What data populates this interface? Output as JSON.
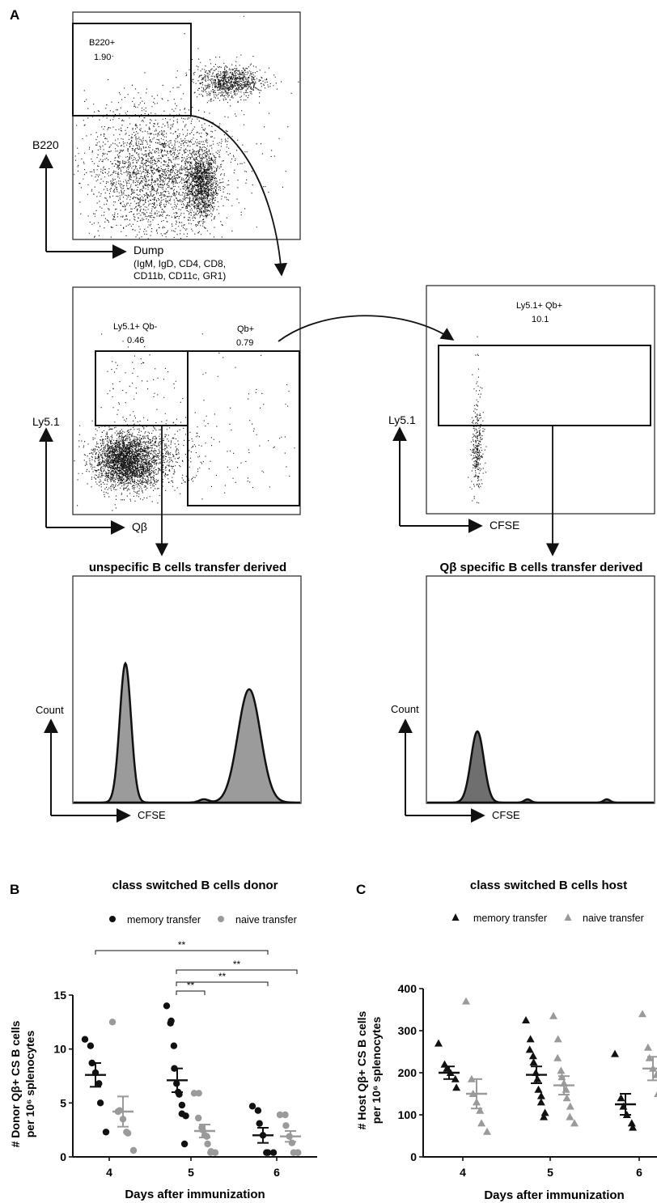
{
  "panel_labels": {
    "a": "A",
    "b": "B",
    "c": "C"
  },
  "colors": {
    "black": "#111111",
    "gray": "#9a9a9a",
    "dark_fill": "#6f6f6f",
    "fill": "#9b9b9b"
  },
  "facs": {
    "plot1": {
      "gate_label": "B220+",
      "gate_value": "1.90",
      "y_axis": "B220",
      "x_axis": "Dump",
      "x_axis_note_1": "(IgM, IgD, CD4, CD8,",
      "x_axis_note_2": "CD11b, CD11c, GR1)"
    },
    "plot2": {
      "gate1_label": "Ly5.1+ Qb-",
      "gate1_value": "0.46",
      "gate2_label": "Qb+",
      "gate2_value": "0.79",
      "y_axis": "Ly5.1",
      "x_axis": "Qβ"
    },
    "plot3": {
      "gate_label": "Ly5.1+ Qb+",
      "gate_value": "10.1",
      "y_axis": "Ly5.1",
      "x_axis": "CFSE"
    },
    "hist1": {
      "title": "unspecific B cells transfer derived",
      "y_axis": "Count",
      "x_axis": "CFSE"
    },
    "hist2": {
      "title": "Qβ specific B cells transfer derived",
      "y_axis": "Count",
      "x_axis": "CFSE"
    }
  },
  "chart_data": [
    {
      "type": "scatter",
      "title": "class switched B cells donor",
      "legend": [
        "memory transfer",
        "naive transfer"
      ],
      "marker": "circle",
      "xlabel": "Days after immunization",
      "ylabel_line1": "# Donor Qβ+ CS B cells",
      "ylabel_line2": "per 10⁶ splenocytes",
      "categories": [
        "4",
        "5",
        "6"
      ],
      "ylim": [
        0,
        15
      ],
      "yticks": [
        "0",
        "5",
        "10",
        "15"
      ],
      "significance": [
        {
          "from": "4 memory",
          "to": "6 memory",
          "label": "**"
        },
        {
          "from": "5 memory",
          "to": "5 naive",
          "label": "**"
        },
        {
          "from": "5 memory",
          "to": "6 memory",
          "label": "**"
        },
        {
          "from": "5 memory",
          "to": "6 naive",
          "label": "**"
        }
      ],
      "series": [
        {
          "name": "memory transfer",
          "color": "#111111",
          "points": [
            {
              "day": "4",
              "values": [
                10.9,
                10.3,
                8.7,
                7.8,
                6.8,
                5.0,
                2.3
              ],
              "mean": 7.6,
              "sem": 1.1
            },
            {
              "day": "5",
              "values": [
                14.0,
                12.6,
                12.4,
                10.3,
                8.2,
                6.8,
                6.0,
                5.8,
                4.8,
                4.0,
                3.8,
                1.2
              ],
              "mean": 7.1,
              "sem": 1.1
            },
            {
              "day": "6",
              "values": [
                4.7,
                4.3,
                3.1,
                2.0,
                0.4,
                0.4,
                0.4
              ],
              "mean": 2.0,
              "sem": 0.7
            }
          ]
        },
        {
          "name": "naive transfer",
          "color": "#9a9a9a",
          "points": [
            {
              "day": "4",
              "values": [
                12.5,
                4.2,
                4.3,
                3.5,
                2.3,
                2.2,
                0.6
              ],
              "mean": 4.2,
              "sem": 1.4
            },
            {
              "day": "5",
              "values": [
                5.9,
                5.9,
                3.6,
                2.7,
                2.5,
                2.0,
                1.9,
                1.2,
                0.5,
                0.4,
                0.4
              ],
              "mean": 2.4,
              "sem": 0.6
            },
            {
              "day": "6",
              "values": [
                3.9,
                3.9,
                2.9,
                1.9,
                1.3,
                0.4,
                0.4,
                0.4
              ],
              "mean": 1.9,
              "sem": 0.5
            }
          ]
        }
      ]
    },
    {
      "type": "scatter",
      "title": "class switched B cells host",
      "legend": [
        "memory transfer",
        "naive transfer"
      ],
      "marker": "triangle",
      "xlabel": "Days after immunization",
      "ylabel_line1": "# Host Qβ+ CS B cells",
      "ylabel_line2": "per 10⁶ splenocytes",
      "categories": [
        "4",
        "5",
        "6"
      ],
      "ylim": [
        0,
        400
      ],
      "yticks": [
        "0",
        "100",
        "200",
        "300",
        "400"
      ],
      "series": [
        {
          "name": "memory transfer",
          "color": "#111111",
          "points": [
            {
              "day": "4",
              "values": [
                270,
                220,
                210,
                200,
                185,
                165
              ],
              "mean": 200,
              "sem": 15
            },
            {
              "day": "5",
              "values": [
                325,
                280,
                255,
                240,
                225,
                200,
                185,
                160,
                145,
                130,
                105,
                95
              ],
              "mean": 195,
              "sem": 20
            },
            {
              "day": "6",
              "values": [
                245,
                140,
                120,
                100,
                80,
                70
              ],
              "mean": 125,
              "sem": 25
            }
          ]
        },
        {
          "name": "naive transfer",
          "color": "#9a9a9a",
          "points": [
            {
              "day": "4",
              "values": [
                370,
                185,
                150,
                130,
                110,
                80,
                60
              ],
              "mean": 150,
              "sem": 35
            },
            {
              "day": "5",
              "values": [
                335,
                280,
                235,
                205,
                190,
                175,
                160,
                140,
                120,
                95,
                80
              ],
              "mean": 170,
              "sem": 22
            },
            {
              "day": "6",
              "values": [
                340,
                260,
                235,
                210,
                195,
                150,
                110
              ],
              "mean": 210,
              "sem": 28
            }
          ]
        }
      ]
    }
  ]
}
